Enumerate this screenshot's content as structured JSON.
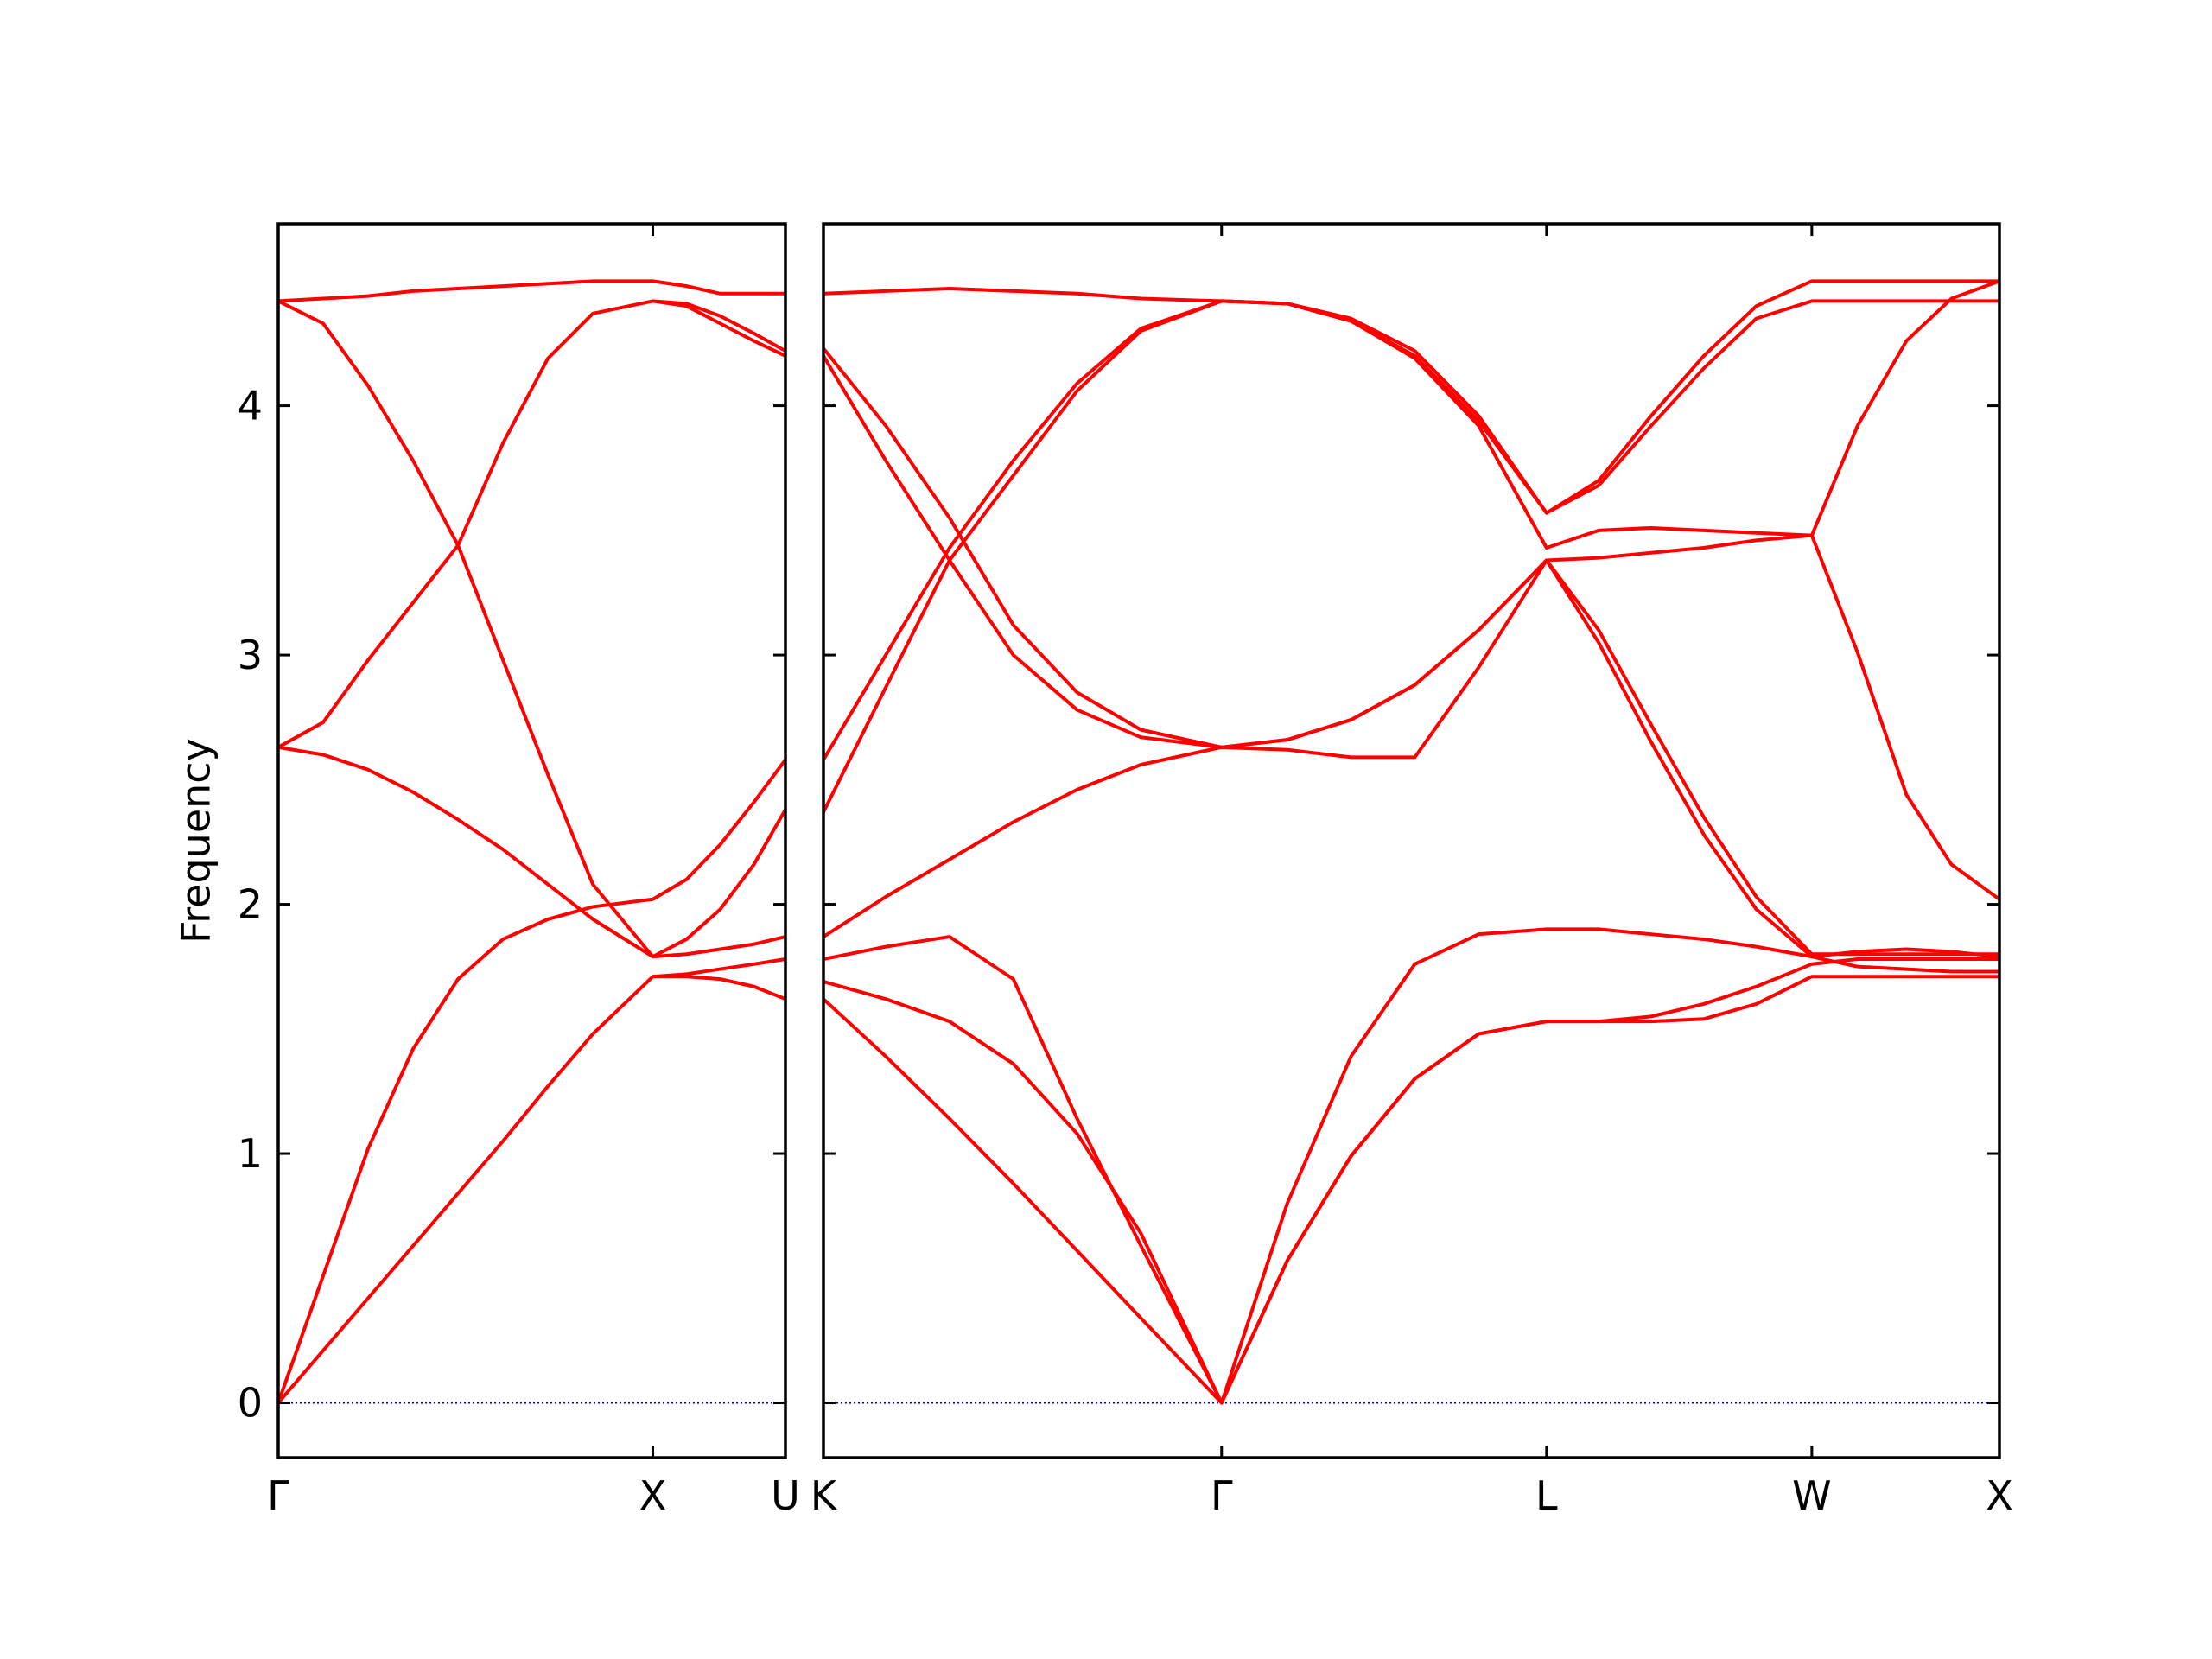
{
  "chart_data": [
    {
      "type": "line",
      "ylabel": "Frequency",
      "xlim": [
        0,
        1.354
      ],
      "ylim": [
        -0.22,
        4.73
      ],
      "xticks": [
        {
          "value": 0,
          "label": "Γ"
        },
        {
          "value": 1,
          "label": "X"
        },
        {
          "value": 1.354,
          "label": "U"
        }
      ],
      "yticks": [
        0,
        1,
        2,
        3,
        4
      ],
      "zero_line_color": "#0000cc",
      "x": [
        0,
        0.12,
        0.24,
        0.36,
        0.48,
        0.6,
        0.72,
        0.84,
        1.0,
        1.09,
        1.18,
        1.27,
        1.354
      ],
      "series": [
        {
          "color": "#ff0000",
          "values": [
            0,
            0.21,
            0.42,
            0.63,
            0.84,
            1.05,
            1.27,
            1.48,
            1.71,
            1.71,
            1.7,
            1.67,
            1.62
          ]
        },
        {
          "color": "#ff0000",
          "values": [
            0,
            0.51,
            1.02,
            1.42,
            1.7,
            1.86,
            1.94,
            1.99,
            2.02,
            2.1,
            2.24,
            2.41,
            2.58
          ]
        },
        {
          "color": "#ff0000",
          "values": [
            2.63,
            2.6,
            2.54,
            2.45,
            2.34,
            2.22,
            2.08,
            1.94,
            1.79,
            1.8,
            1.82,
            1.84,
            1.87
          ]
        },
        {
          "color": "#ff0000",
          "values": [
            2.63,
            2.73,
            2.98,
            3.21,
            3.44,
            3.85,
            4.19,
            4.37,
            4.42,
            4.4,
            4.33,
            4.26,
            4.2
          ]
        },
        {
          "color": "#ff0000",
          "values": [
            4.42,
            4.33,
            4.08,
            3.78,
            3.44,
            2.98,
            2.52,
            2.08,
            1.79,
            1.86,
            1.98,
            2.16,
            2.38
          ]
        },
        {
          "color": "#ff0000",
          "values": [
            4.42,
            4.43,
            4.44,
            4.46,
            4.47,
            4.48,
            4.49,
            4.5,
            4.5,
            4.48,
            4.45,
            4.45,
            4.45
          ]
        },
        {
          "color": "#ff0000",
          "values": [
            null,
            null,
            null,
            null,
            null,
            null,
            null,
            null,
            1.71,
            1.72,
            1.74,
            1.76,
            1.78
          ]
        },
        {
          "color": "#ff0000",
          "values": [
            null,
            null,
            null,
            null,
            null,
            null,
            null,
            null,
            4.42,
            4.41,
            4.36,
            4.29,
            4.22
          ]
        }
      ]
    },
    {
      "type": "line",
      "xlim": [
        1.354,
        4.488
      ],
      "ylim": [
        -0.22,
        4.73
      ],
      "xticks": [
        {
          "value": 1.354,
          "label": "K"
        },
        {
          "value": 2.415,
          "label": "Γ"
        },
        {
          "value": 3.281,
          "label": "L"
        },
        {
          "value": 3.988,
          "label": "W"
        },
        {
          "value": 4.488,
          "label": "X"
        }
      ],
      "yticks": [
        0,
        1,
        2,
        3,
        4
      ],
      "zero_line_color": "#0000cc",
      "x": [
        1.354,
        1.52,
        1.69,
        1.86,
        2.03,
        2.2,
        2.415,
        2.59,
        2.76,
        2.93,
        3.1,
        3.281,
        3.42,
        3.56,
        3.7,
        3.84,
        3.988,
        4.11,
        4.24,
        4.36,
        4.488
      ],
      "series": [
        {
          "color": "#ff0000",
          "values": [
            1.62,
            1.39,
            1.14,
            0.88,
            0.61,
            0.34,
            0,
            0.57,
            0.99,
            1.3,
            1.48,
            1.53,
            1.53,
            1.53,
            1.54,
            1.6,
            1.71,
            1.71,
            1.71,
            1.71,
            1.71
          ]
        },
        {
          "color": "#ff0000",
          "values": [
            1.69,
            1.62,
            1.53,
            1.36,
            1.08,
            0.68,
            0,
            0.8,
            1.39,
            1.76,
            1.88,
            1.9,
            1.9,
            1.88,
            1.86,
            1.83,
            1.79,
            1.81,
            1.82,
            1.81,
            1.79
          ]
        },
        {
          "color": "#ff0000",
          "values": [
            1.78,
            1.83,
            1.87,
            1.7,
            1.14,
            0.63,
            0,
            0.57,
            0.99,
            1.3,
            1.48,
            1.53,
            1.53,
            1.55,
            1.6,
            1.67,
            1.76,
            1.78,
            1.78,
            1.78,
            1.78
          ]
        },
        {
          "color": "#ff0000",
          "values": [
            1.87,
            2.03,
            2.18,
            2.33,
            2.46,
            2.56,
            2.63,
            2.62,
            2.59,
            2.59,
            2.95,
            3.38,
            3.39,
            3.41,
            3.43,
            3.46,
            3.48,
            3.01,
            2.44,
            2.16,
            2.02
          ]
        },
        {
          "color": "#ff0000",
          "values": [
            2.37,
            2.87,
            3.38,
            3.72,
            4.06,
            4.3,
            4.42,
            4.41,
            4.34,
            4.19,
            3.92,
            3.43,
            3.5,
            3.51,
            3.5,
            3.49,
            3.48,
            3.92,
            4.26,
            4.43,
            4.5
          ]
        },
        {
          "color": "#ff0000",
          "values": [
            2.58,
            3.0,
            3.43,
            3.78,
            4.09,
            4.31,
            4.42,
            4.41,
            4.35,
            4.22,
            3.96,
            3.57,
            3.7,
            3.96,
            4.2,
            4.4,
            4.5,
            4.5,
            4.5,
            4.5,
            4.5
          ]
        },
        {
          "color": "#ff0000",
          "values": [
            4.2,
            3.78,
            3.38,
            3.0,
            2.78,
            2.67,
            2.63,
            2.66,
            2.74,
            2.88,
            3.1,
            3.38,
            3.05,
            2.65,
            2.28,
            1.98,
            1.79,
            1.75,
            1.74,
            1.73,
            1.73
          ]
        },
        {
          "color": "#ff0000",
          "values": [
            4.23,
            3.92,
            3.55,
            3.12,
            2.85,
            2.7,
            2.63,
            2.66,
            2.74,
            2.88,
            3.1,
            3.38,
            3.1,
            2.72,
            2.35,
            2.03,
            1.8,
            1.8,
            1.8,
            1.8,
            1.8
          ]
        },
        {
          "color": "#ff0000",
          "values": [
            4.45,
            4.46,
            4.47,
            4.46,
            4.45,
            4.43,
            4.42,
            4.41,
            4.34,
            4.2,
            3.94,
            3.57,
            3.68,
            3.92,
            4.15,
            4.35,
            4.42,
            4.42,
            4.42,
            4.42,
            4.42
          ]
        }
      ]
    }
  ]
}
